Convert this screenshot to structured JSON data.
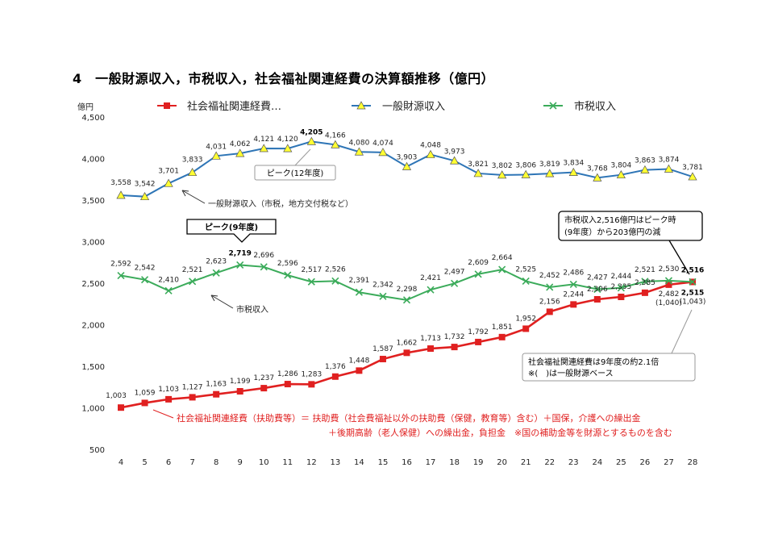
{
  "title": "4　一般財源収入，市税収入，社会福祉関連経費の決算額推移（億円）",
  "chart_data": {
    "type": "line",
    "unit_label": "億円",
    "categories": [
      "4",
      "5",
      "6",
      "7",
      "8",
      "9",
      "10",
      "11",
      "12",
      "13",
      "14",
      "15",
      "16",
      "17",
      "18",
      "19",
      "20",
      "21",
      "22",
      "23",
      "24",
      "25",
      "26",
      "27",
      "28"
    ],
    "ylim": [
      500,
      4500
    ],
    "yticks": [
      "500",
      "1,000",
      "1,500",
      "2,000",
      "2,500",
      "3,000",
      "3,500",
      "4,000",
      "4,500"
    ],
    "legend_position": "top",
    "series": [
      {
        "name": "社会福祉関連経費…",
        "color": "#e02020",
        "marker": "square",
        "values": [
          1003,
          1059,
          1103,
          1127,
          1163,
          1199,
          1237,
          1286,
          1283,
          1376,
          1448,
          1587,
          1662,
          1713,
          1732,
          1792,
          1851,
          1952,
          2156,
          2244,
          2306,
          2335,
          2385,
          2482,
          2515
        ],
        "labels": [
          "1,003",
          "1,059",
          "1,103",
          "1,127",
          "1,163",
          "1,199",
          "1,237",
          "1,286",
          "1,283",
          "1,376",
          "1,448",
          "1,587",
          "1,662",
          "1,713",
          "1,732",
          "1,792",
          "1,851",
          "1,952",
          "2,156",
          "2,244",
          "2,306",
          "2,335",
          "2,385",
          "2,482",
          "2,515"
        ]
      },
      {
        "name": "一般財源収入",
        "color": "#2e75b6",
        "marker": "triangle",
        "values": [
          3558,
          3542,
          3701,
          3833,
          4031,
          4062,
          4121,
          4120,
          4205,
          4166,
          4080,
          4074,
          3903,
          4048,
          3973,
          3821,
          3802,
          3806,
          3819,
          3834,
          3768,
          3804,
          3863,
          3874,
          3781
        ],
        "labels": [
          "3,558",
          "3,542",
          "3,701",
          "3,833",
          "4,031",
          "4,062",
          "4,121",
          "4,120",
          "4,205",
          "4,166",
          "4,080",
          "4,074",
          "3,903",
          "4,048",
          "3,973",
          "3,821",
          "3,802",
          "3,806",
          "3,819",
          "3,834",
          "3,768",
          "3,804",
          "3,863",
          "3,874",
          "3,781"
        ]
      },
      {
        "name": "市税収入",
        "color": "#3bab5a",
        "marker": "x",
        "values": [
          2592,
          2542,
          2410,
          2521,
          2623,
          2719,
          2696,
          2596,
          2517,
          2526,
          2391,
          2342,
          2298,
          2421,
          2497,
          2609,
          2664,
          2525,
          2452,
          2486,
          2427,
          2444,
          2521,
          2530,
          2516
        ],
        "labels": [
          "2,592",
          "2,542",
          "2,410",
          "2,521",
          "2,623",
          "2,719",
          "2,696",
          "2,596",
          "2,517",
          "2,526",
          "2,391",
          "2,342",
          "2,298",
          "2,421",
          "2,497",
          "2,609",
          "2,664",
          "2,525",
          "2,452",
          "2,486",
          "2,427",
          "2,444",
          "2,521",
          "2,530",
          "2,516"
        ]
      }
    ],
    "extra_labels": {
      "v27": "(1,040)",
      "v28": "(1,043)"
    },
    "annotations": {
      "peak12": "ピーク(12年度)",
      "general_note": "一般財源収入（市税，地方交付税など）",
      "peak9": "ピーク(9年度)",
      "tax_note": "市税収入",
      "callout_tax_line1": "市税収入2,516億円はピーク時",
      "callout_tax_line2": "(9年度）から203億円の減",
      "callout_welfare_line1": "社会福祉関連経費は9年度の約2.1倍",
      "callout_welfare_line2": "※(　)は一般財源ベース",
      "welfare_def_line1": "社会福祉関連経費（扶助費等）＝ 扶助費（社会費福祉以外の扶助費（保健，教育等）含む）＋国保，介護への繰出金",
      "welfare_def_line2": "＋後期高齢（老人保健）への繰出金，負担金　※国の補助金等を財源とするものを含む"
    }
  }
}
